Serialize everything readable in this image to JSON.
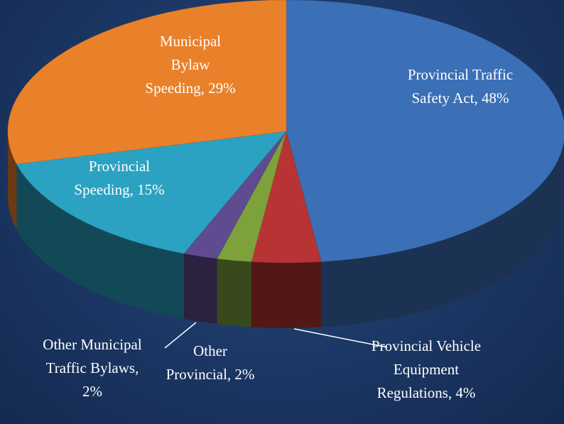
{
  "chart_data": {
    "type": "pie",
    "values": [
      48,
      4,
      2,
      2,
      15,
      29
    ],
    "value_labels": [
      "Provincial Traffic Safety Act, 48%",
      "Provincial Vehicle Equipment Regulations, 4%",
      "Other Provincial, 2%",
      "Other Municipal Traffic Bylaws, 2%",
      "Provincial Speeding, 15%",
      "Municipal Bylaw Speeding, 29%"
    ],
    "colors": [
      "#3b6fb6",
      "#b83434",
      "#7da23b",
      "#5f4b8f",
      "#2ba2c2",
      "#e9812b"
    ]
  }
}
